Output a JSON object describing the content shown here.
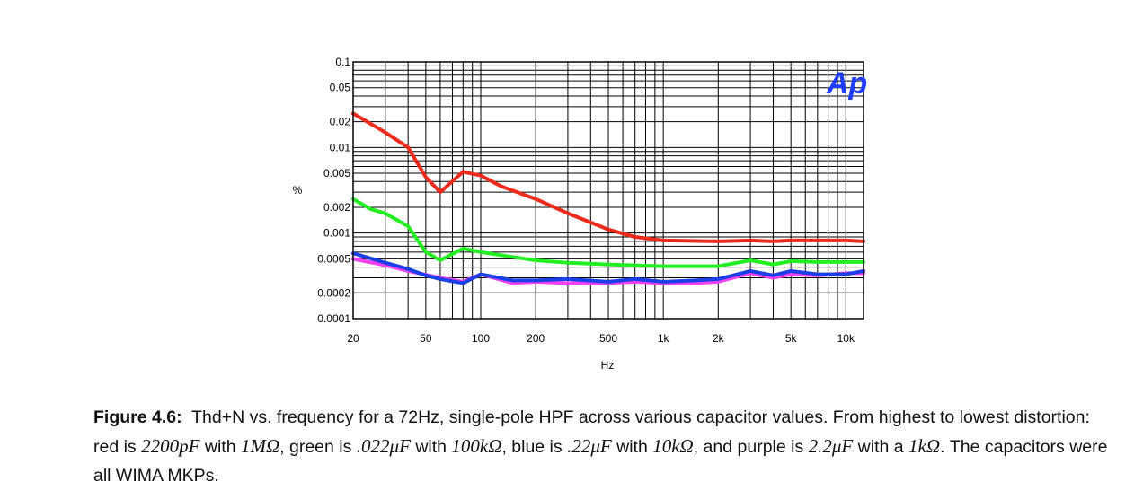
{
  "chart_data": {
    "type": "line",
    "xlabel": "Hz",
    "ylabel": "%",
    "xscale": "log",
    "yscale": "log",
    "xlim": [
      20,
      12500
    ],
    "ylim": [
      0.0001,
      0.1
    ],
    "grid": true,
    "logo": "Ap",
    "x_ticks": [
      20,
      50,
      100,
      200,
      500,
      1000,
      2000,
      5000,
      10000
    ],
    "x_tick_labels": [
      "20",
      "50",
      "100",
      "200",
      "500",
      "1k",
      "2k",
      "5k",
      "10k"
    ],
    "y_ticks": [
      0.1,
      0.05,
      0.02,
      0.01,
      0.005,
      0.002,
      0.001,
      0.0005,
      0.0002,
      0.0001
    ],
    "y_tick_labels": [
      "0.1",
      "0.05",
      "0.02",
      "0.01",
      "0.005",
      "0.002",
      "0.001",
      "0.0005",
      "0.0002",
      "0.0001"
    ],
    "series": [
      {
        "color": "#ee2a1b",
        "x": [
          20,
          30,
          40,
          50,
          60,
          80,
          100,
          130,
          200,
          300,
          500,
          700,
          1000,
          2000,
          3000,
          4000,
          5000,
          7000,
          10000,
          12500
        ],
        "y": [
          0.025,
          0.015,
          0.01,
          0.0045,
          0.003,
          0.0052,
          0.0047,
          0.0035,
          0.0025,
          0.0017,
          0.0011,
          0.0009,
          0.00082,
          0.0008,
          0.00082,
          0.0008,
          0.00082,
          0.00082,
          0.00082,
          0.0008
        ]
      },
      {
        "color": "#22ee22",
        "x": [
          20,
          25,
          30,
          40,
          50,
          60,
          80,
          100,
          130,
          200,
          300,
          500,
          700,
          1000,
          2000,
          3000,
          4000,
          5000,
          7000,
          10000,
          12500
        ],
        "y": [
          0.0025,
          0.0019,
          0.0017,
          0.0012,
          0.0006,
          0.00048,
          0.00066,
          0.0006,
          0.00055,
          0.00048,
          0.00045,
          0.00043,
          0.00042,
          0.00041,
          0.00041,
          0.00048,
          0.00043,
          0.00047,
          0.00046,
          0.00046,
          0.00046
        ]
      },
      {
        "color": "#f040f0",
        "x": [
          20,
          30,
          40,
          60,
          80,
          100,
          150,
          200,
          300,
          500,
          700,
          1000,
          1500,
          2000,
          3000,
          4000,
          5000,
          7000,
          10000,
          12500
        ],
        "y": [
          0.0005,
          0.00042,
          0.00036,
          0.0003,
          0.00027,
          0.00033,
          0.00026,
          0.00027,
          0.00026,
          0.00026,
          0.00027,
          0.00026,
          0.00026,
          0.00027,
          0.00034,
          0.0003,
          0.00033,
          0.00032,
          0.00034,
          0.00034
        ]
      },
      {
        "color": "#1a3fe6",
        "x": [
          20,
          30,
          40,
          50,
          60,
          80,
          100,
          150,
          200,
          300,
          500,
          700,
          1000,
          1500,
          2000,
          3000,
          4000,
          5000,
          7000,
          10000,
          12500
        ],
        "y": [
          0.00058,
          0.00045,
          0.00038,
          0.00032,
          0.00029,
          0.00026,
          0.00033,
          0.00028,
          0.00028,
          0.00029,
          0.00027,
          0.00029,
          0.00027,
          0.00028,
          0.00029,
          0.00036,
          0.00032,
          0.00036,
          0.00033,
          0.00033,
          0.00036
        ]
      }
    ]
  },
  "caption": {
    "figure_label": "Figure 4.6:",
    "text_1": "Thd+N vs. frequency for a 72Hz, single-pole HPF across various capacitor values. From highest to lowest distortion: red is ",
    "red_cap": "2200pF",
    "text_2": " with ",
    "red_res": "1MΩ",
    "text_3": ", green is ",
    "green_cap": ".022μF",
    "text_4": " with ",
    "green_res": "100kΩ",
    "text_5": ", blue is ",
    "blue_cap": ".22μF",
    "text_6": " with ",
    "blue_res": "10kΩ",
    "text_7": ", and purple is ",
    "purple_cap": "2.2μF",
    "text_8": " with a ",
    "purple_res": "1kΩ",
    "text_9": ". The capacitors were all WIMA MKPs."
  }
}
